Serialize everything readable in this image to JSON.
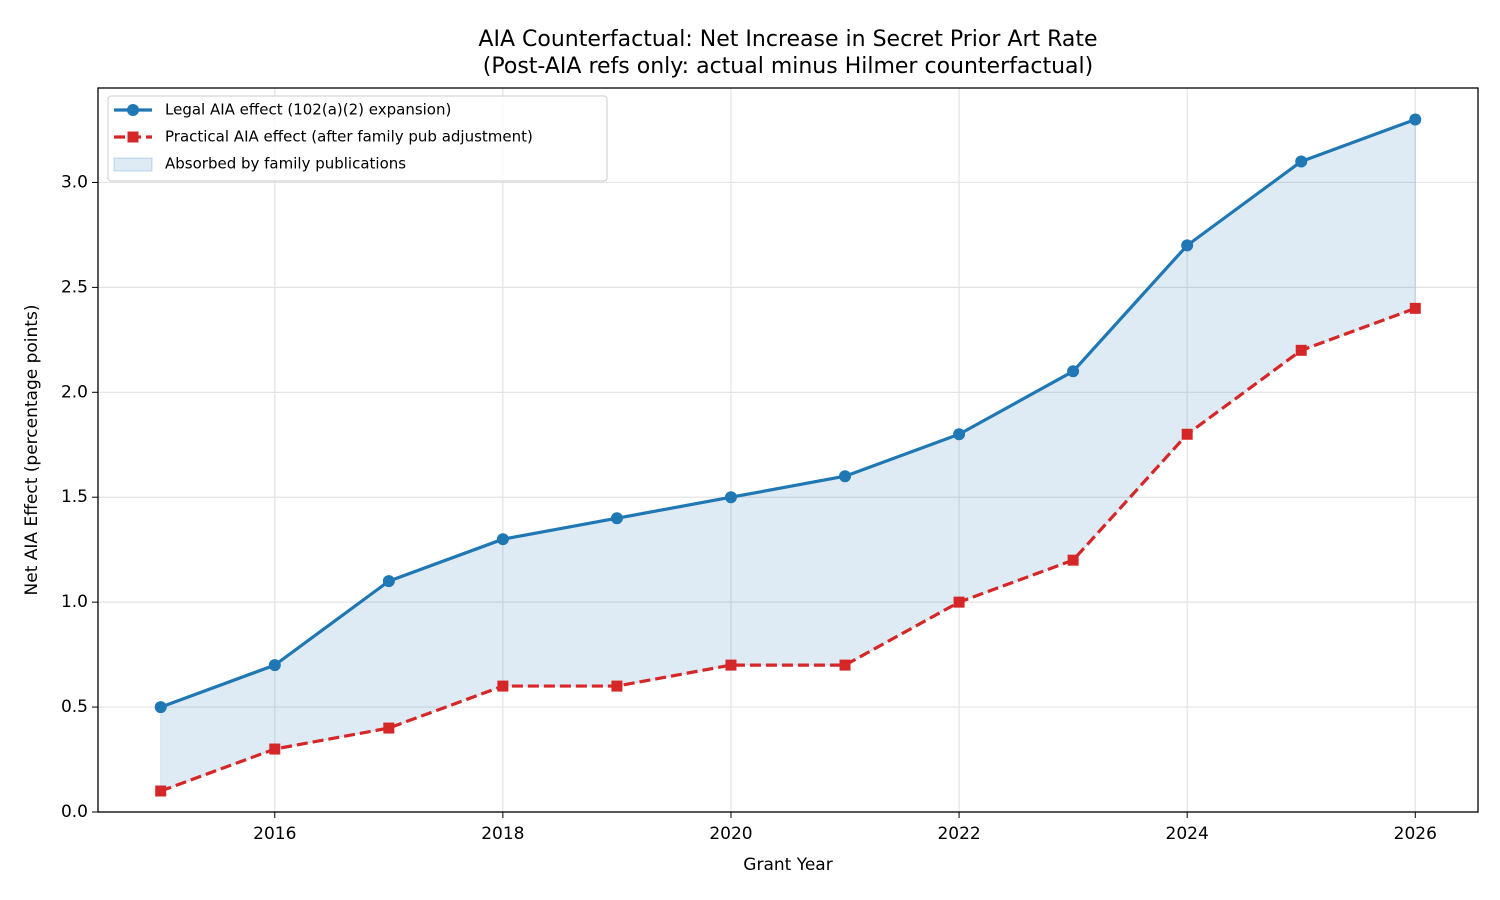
{
  "chart_data": {
    "type": "line",
    "title": "AIA Counterfactual: Net Increase in Secret Prior Art Rate",
    "subtitle": "(Post-AIA refs only: actual minus Hilmer counterfactual)",
    "x_label": "Grant Year",
    "y_label": "Net AIA Effect (percentage points)",
    "x": [
      2015,
      2016,
      2017,
      2018,
      2019,
      2020,
      2021,
      2022,
      2023,
      2024,
      2025,
      2026
    ],
    "series": [
      {
        "name": "Legal AIA effect (102(a)(2) expansion)",
        "color": "#1f77b4",
        "marker": "circle",
        "dash": false,
        "values": [
          0.5,
          0.7,
          1.1,
          1.3,
          1.4,
          1.5,
          1.6,
          1.8,
          2.1,
          2.7,
          3.1,
          3.3
        ]
      },
      {
        "name": "Practical AIA effect (after family pub adjustment)",
        "color": "#d62728",
        "marker": "square",
        "dash": true,
        "values": [
          0.1,
          0.3,
          0.4,
          0.6,
          0.6,
          0.7,
          0.7,
          1.0,
          1.2,
          1.8,
          2.2,
          2.4
        ]
      }
    ],
    "fill": {
      "name": "Absorbed by family publications",
      "color": "#1f77b4"
    },
    "xlim": [
      2014.45,
      2026.55
    ],
    "xticks": [
      2016,
      2018,
      2020,
      2022,
      2024,
      2026
    ],
    "ylim": [
      0,
      3.45
    ],
    "yticks": [
      {
        "value": 0,
        "label": "0.0"
      },
      0.5,
      {
        "value": 1,
        "label": "1.0"
      },
      1.5,
      {
        "value": 2,
        "label": "2.0"
      },
      2.5,
      {
        "value": 3,
        "label": "3.0"
      }
    ],
    "grid": true,
    "legend": "upper left"
  }
}
